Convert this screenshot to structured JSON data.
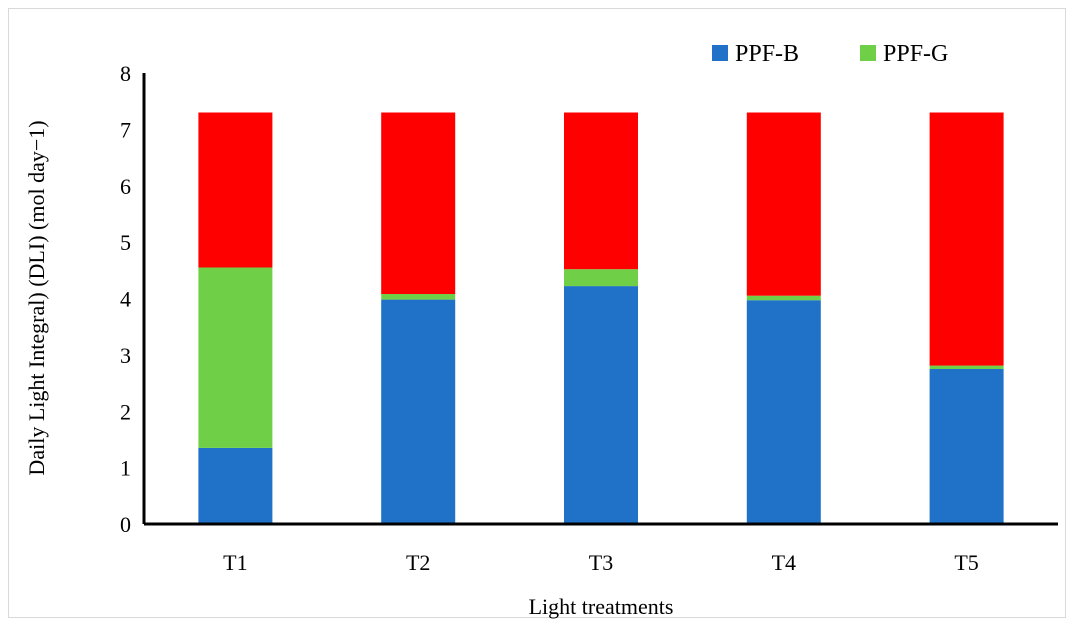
{
  "chart_data": {
    "type": "bar",
    "stacked": true,
    "categories": [
      "T1",
      "T2",
      "T3",
      "T4",
      "T5"
    ],
    "series": [
      {
        "name": "PPF-B",
        "color": "#1f72c8",
        "values": [
          1.35,
          3.98,
          4.22,
          3.97,
          2.75
        ]
      },
      {
        "name": "PPF-G",
        "color": "#6fd047",
        "values": [
          3.2,
          0.1,
          0.3,
          0.08,
          0.06
        ]
      },
      {
        "name": "",
        "color": "#ff0000",
        "values": [
          2.75,
          3.22,
          2.78,
          3.25,
          4.49
        ]
      }
    ],
    "xlabel": "Light treatments",
    "ylabel": "Daily Light Integral) (DLI) (mol day−1)",
    "ylim": [
      0,
      8
    ],
    "yticks": [
      "0",
      "1",
      "2",
      "3",
      "4",
      "5",
      "6",
      "7",
      "8"
    ],
    "grid": false,
    "legend_position": "top-right"
  }
}
